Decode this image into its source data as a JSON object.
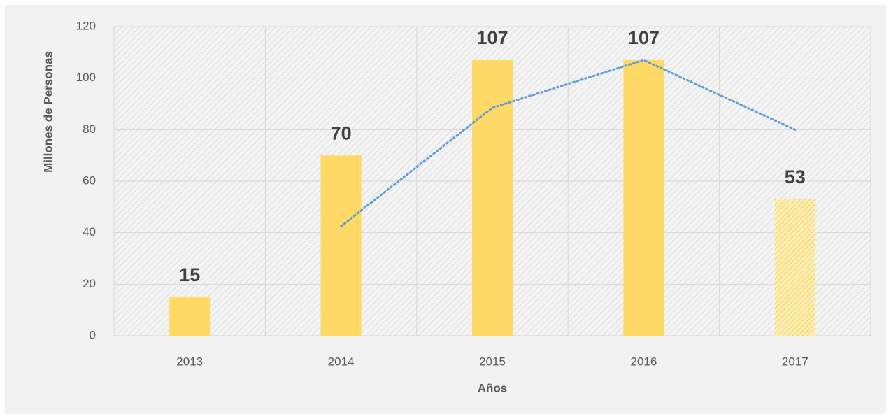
{
  "chart_data": {
    "type": "bar",
    "categories": [
      "2013",
      "2014",
      "2015",
      "2016",
      "2017"
    ],
    "values": [
      15,
      70,
      107,
      107,
      53
    ],
    "color": "#ffd966",
    "bar_styles": [
      "solid",
      "solid",
      "solid",
      "solid",
      "hatched"
    ],
    "trendline": {
      "values": [
        null,
        42.5,
        88.5,
        107,
        80
      ],
      "color": "#5b9bd5",
      "style": "dotted"
    },
    "ylim": [
      0,
      120
    ],
    "yticks": [
      0,
      20,
      40,
      60,
      80,
      100,
      120
    ],
    "grid": true,
    "y_label": "Millones de Personas",
    "x_label": "Años"
  }
}
